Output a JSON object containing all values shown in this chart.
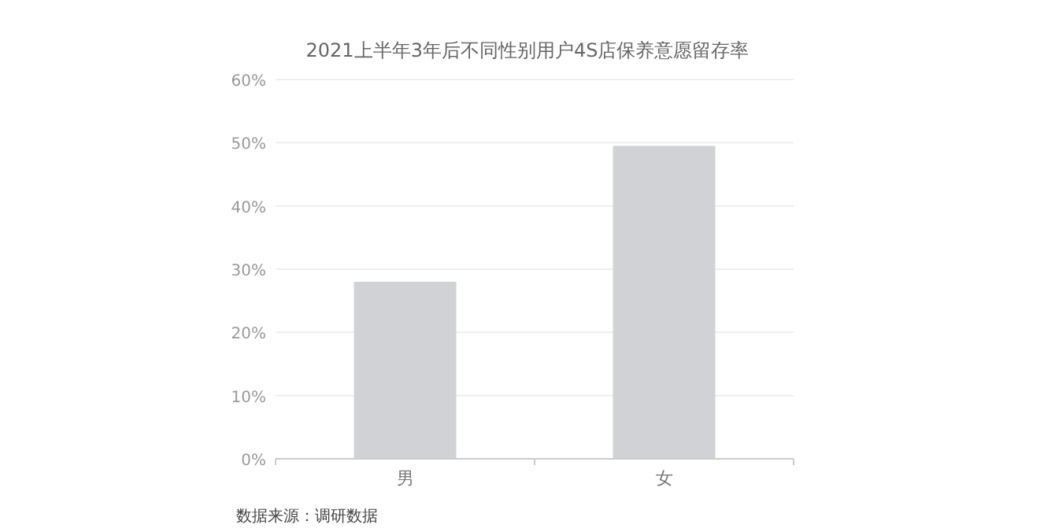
{
  "chart_data": {
    "type": "bar",
    "title": "2021上半年3年后不同性别用户4S店保养意愿留存率",
    "categories": [
      "男",
      "女"
    ],
    "values": [
      28.0,
      49.5
    ],
    "color": "#d0d2d5",
    "ylim": [
      0,
      60
    ],
    "yticks": [
      {
        "value": 0,
        "label": "0%"
      },
      {
        "value": 10,
        "label": "10%"
      },
      {
        "value": 20,
        "label": "20%"
      },
      {
        "value": 30,
        "label": "30%"
      },
      {
        "value": 40,
        "label": "40%"
      },
      {
        "value": 50,
        "label": "50%"
      },
      {
        "value": 60,
        "label": "60%"
      }
    ],
    "grid": "y",
    "annotations": [
      "数据来源：调研数据"
    ]
  }
}
